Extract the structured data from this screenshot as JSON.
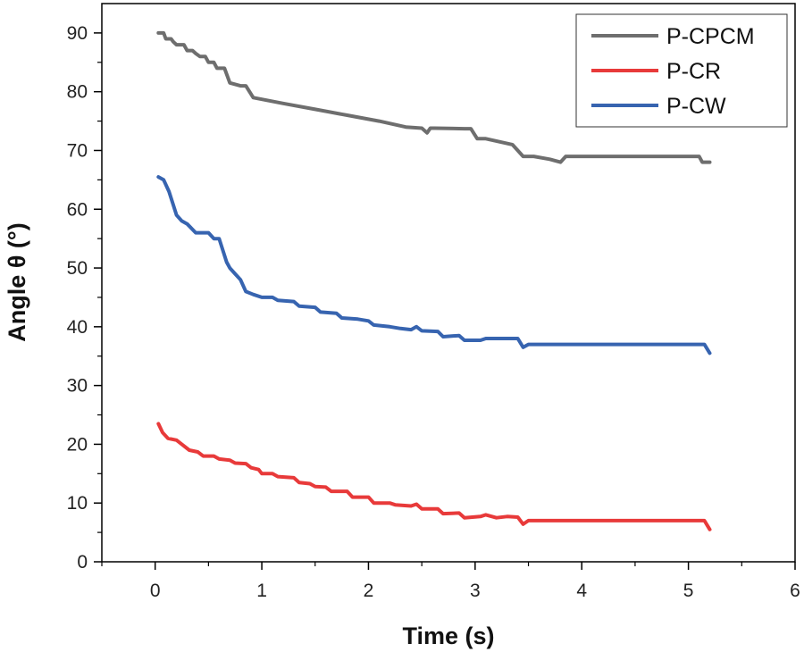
{
  "chart_data": {
    "type": "line",
    "title": "",
    "xlabel": "Time (s)",
    "ylabel": "Angle θ (°)",
    "xlim": [
      -0.5,
      6
    ],
    "ylim": [
      0,
      95
    ],
    "x_ticks": [
      0,
      1,
      2,
      3,
      4,
      5,
      6
    ],
    "y_ticks": [
      0,
      10,
      20,
      30,
      40,
      50,
      60,
      70,
      80,
      90
    ],
    "grid": false,
    "legend_position": "top-right",
    "series": [
      {
        "name": "P-CPCM",
        "color": "#6e6e6e",
        "points": [
          [
            0.03,
            90
          ],
          [
            0.08,
            90
          ],
          [
            0.1,
            89
          ],
          [
            0.15,
            89
          ],
          [
            0.17,
            88.5
          ],
          [
            0.2,
            88
          ],
          [
            0.27,
            88
          ],
          [
            0.3,
            87
          ],
          [
            0.35,
            87
          ],
          [
            0.38,
            86.5
          ],
          [
            0.42,
            86
          ],
          [
            0.47,
            86
          ],
          [
            0.5,
            85
          ],
          [
            0.55,
            85
          ],
          [
            0.58,
            84
          ],
          [
            0.65,
            84
          ],
          [
            0.7,
            81.5
          ],
          [
            0.8,
            81
          ],
          [
            0.85,
            81
          ],
          [
            0.92,
            79
          ],
          [
            1.2,
            78
          ],
          [
            1.5,
            77
          ],
          [
            1.8,
            76
          ],
          [
            2.1,
            75
          ],
          [
            2.35,
            74
          ],
          [
            2.5,
            73.8
          ],
          [
            2.55,
            73
          ],
          [
            2.58,
            73.8
          ],
          [
            2.62,
            73.8
          ],
          [
            2.9,
            73.7
          ],
          [
            2.96,
            73.7
          ],
          [
            3.02,
            72
          ],
          [
            3.1,
            72
          ],
          [
            3.35,
            71
          ],
          [
            3.45,
            69
          ],
          [
            3.55,
            69
          ],
          [
            3.7,
            68.5
          ],
          [
            3.8,
            68
          ],
          [
            3.85,
            69
          ],
          [
            4.5,
            69
          ],
          [
            4.9,
            69
          ],
          [
            5.1,
            69
          ],
          [
            5.13,
            68
          ],
          [
            5.2,
            68
          ]
        ]
      },
      {
        "name": "P-CR",
        "color": "#e83a3a",
        "points": [
          [
            0.03,
            23.5
          ],
          [
            0.07,
            22
          ],
          [
            0.12,
            21
          ],
          [
            0.2,
            20.7
          ],
          [
            0.25,
            20
          ],
          [
            0.32,
            19
          ],
          [
            0.4,
            18.7
          ],
          [
            0.45,
            18
          ],
          [
            0.55,
            18
          ],
          [
            0.6,
            17.5
          ],
          [
            0.7,
            17.3
          ],
          [
            0.75,
            16.8
          ],
          [
            0.85,
            16.7
          ],
          [
            0.9,
            16
          ],
          [
            0.97,
            15.7
          ],
          [
            1.0,
            15
          ],
          [
            1.1,
            15
          ],
          [
            1.15,
            14.5
          ],
          [
            1.3,
            14.3
          ],
          [
            1.35,
            13.5
          ],
          [
            1.45,
            13.3
          ],
          [
            1.5,
            12.8
          ],
          [
            1.6,
            12.7
          ],
          [
            1.65,
            12
          ],
          [
            1.8,
            12
          ],
          [
            1.85,
            11
          ],
          [
            2.0,
            11
          ],
          [
            2.05,
            10
          ],
          [
            2.2,
            10
          ],
          [
            2.25,
            9.7
          ],
          [
            2.4,
            9.5
          ],
          [
            2.45,
            9.8
          ],
          [
            2.5,
            9
          ],
          [
            2.65,
            9
          ],
          [
            2.7,
            8.2
          ],
          [
            2.85,
            8.3
          ],
          [
            2.9,
            7.5
          ],
          [
            3.05,
            7.7
          ],
          [
            3.1,
            8
          ],
          [
            3.2,
            7.5
          ],
          [
            3.3,
            7.7
          ],
          [
            3.4,
            7.6
          ],
          [
            3.45,
            6.4
          ],
          [
            3.5,
            7
          ],
          [
            4.0,
            7
          ],
          [
            4.5,
            7
          ],
          [
            5.15,
            7
          ],
          [
            5.2,
            5.5
          ]
        ]
      },
      {
        "name": "P-CW",
        "color": "#3764b0",
        "points": [
          [
            0.03,
            65.5
          ],
          [
            0.08,
            65
          ],
          [
            0.13,
            63
          ],
          [
            0.2,
            59
          ],
          [
            0.25,
            58
          ],
          [
            0.3,
            57.5
          ],
          [
            0.38,
            56
          ],
          [
            0.5,
            56
          ],
          [
            0.55,
            55
          ],
          [
            0.6,
            55
          ],
          [
            0.67,
            51
          ],
          [
            0.7,
            50
          ],
          [
            0.75,
            49
          ],
          [
            0.8,
            48
          ],
          [
            0.85,
            46
          ],
          [
            0.92,
            45.5
          ],
          [
            1.0,
            45
          ],
          [
            1.1,
            45
          ],
          [
            1.15,
            44.5
          ],
          [
            1.3,
            44.3
          ],
          [
            1.35,
            43.5
          ],
          [
            1.5,
            43.3
          ],
          [
            1.55,
            42.5
          ],
          [
            1.7,
            42.3
          ],
          [
            1.75,
            41.5
          ],
          [
            1.9,
            41.3
          ],
          [
            2.0,
            41
          ],
          [
            2.05,
            40.3
          ],
          [
            2.2,
            40
          ],
          [
            2.3,
            39.7
          ],
          [
            2.4,
            39.5
          ],
          [
            2.45,
            40
          ],
          [
            2.5,
            39.3
          ],
          [
            2.65,
            39.2
          ],
          [
            2.7,
            38.3
          ],
          [
            2.85,
            38.5
          ],
          [
            2.9,
            37.7
          ],
          [
            3.05,
            37.7
          ],
          [
            3.1,
            38
          ],
          [
            3.3,
            38
          ],
          [
            3.4,
            38
          ],
          [
            3.45,
            36.5
          ],
          [
            3.5,
            37
          ],
          [
            4.0,
            37
          ],
          [
            4.5,
            37
          ],
          [
            5.15,
            37
          ],
          [
            5.2,
            35.5
          ]
        ]
      }
    ]
  }
}
